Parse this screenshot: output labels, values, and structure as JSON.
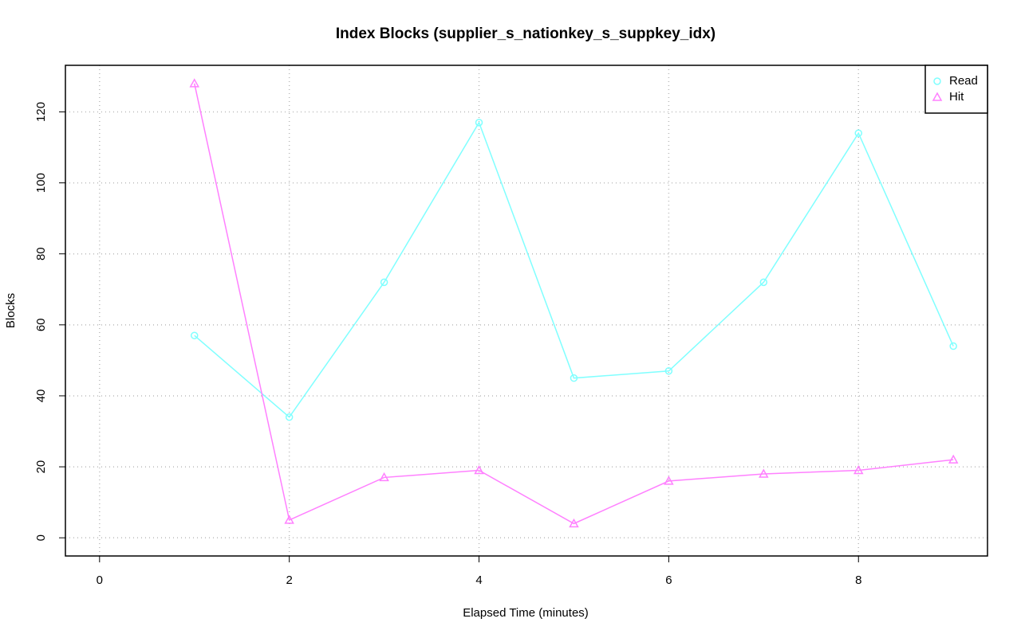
{
  "chart_data": {
    "type": "line",
    "title": "Index Blocks (supplier_s_nationkey_s_suppkey_idx)",
    "x_label": "Elapsed Time (minutes)",
    "y_label": "Blocks",
    "x": [
      1,
      2,
      3,
      4,
      5,
      6,
      7,
      8,
      9
    ],
    "series": [
      {
        "name": "Read",
        "color": "#80ffff",
        "marker": "circle",
        "values": [
          57,
          34,
          72,
          117,
          45,
          47,
          72,
          114,
          54
        ]
      },
      {
        "name": "Hit",
        "color": "#ff80ff",
        "marker": "triangle",
        "values": [
          128,
          5,
          17,
          19,
          4,
          16,
          18,
          19,
          22
        ]
      }
    ],
    "xlim": [
      -0.36,
      9.36
    ],
    "xticks": [
      0,
      2,
      4,
      6,
      8
    ],
    "ylim": [
      -5.12,
      133.12
    ],
    "yticks": [
      0,
      20,
      40,
      60,
      80,
      100,
      120
    ],
    "grid": true,
    "legend": "top-right"
  }
}
